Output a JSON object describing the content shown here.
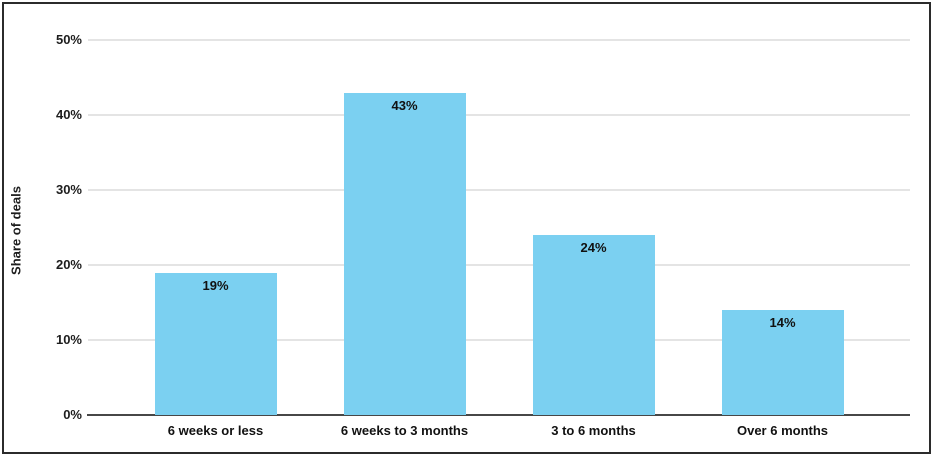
{
  "chart_data": {
    "type": "bar",
    "title": "",
    "categories": [
      "6 weeks or less",
      "6 weeks to 3 months",
      "3 to 6 months",
      "Over 6 months"
    ],
    "values": [
      19,
      43,
      24,
      14
    ],
    "value_labels": [
      "19%",
      "43%",
      "24%",
      "14%"
    ],
    "xlabel": "",
    "ylabel": "Share of deals",
    "yticks": [
      "0%",
      "10%",
      "20%",
      "30%",
      "40%",
      "50%"
    ],
    "ytick_values": [
      0,
      10,
      20,
      30,
      40,
      50
    ],
    "ylim": [
      0,
      50
    ],
    "grid": "horizontal-on",
    "legend": "none",
    "bar_color": "#7bd0f1",
    "gridline_color": "#e4e4e4",
    "axis_line_color": "#474747",
    "label_color": "#111111"
  }
}
